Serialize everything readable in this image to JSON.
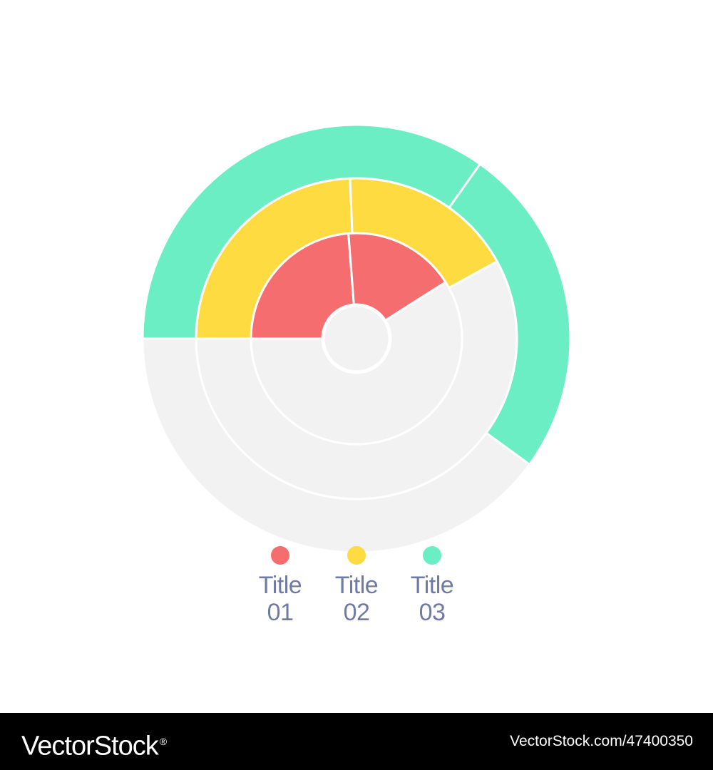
{
  "chart_data": {
    "type": "radial-bar",
    "center": "",
    "track_color": "#f2f2f2",
    "rings": [
      {
        "name": "Title 01",
        "value": 41,
        "color": "#f66d6f"
      },
      {
        "name": "Title 02",
        "value": 42,
        "color": "#fedb41"
      },
      {
        "name": "Title 03",
        "value": 60,
        "color": "#6beec4"
      }
    ],
    "legend": {
      "placement": "bottom",
      "items": [
        {
          "title": "Title",
          "number": "01",
          "color": "#f66d6f"
        },
        {
          "title": "Title",
          "number": "02",
          "color": "#fedb41"
        },
        {
          "title": "Title",
          "number": "03",
          "color": "#6beec4"
        }
      ]
    }
  },
  "watermark": {
    "brand": "VectorStock",
    "brand_mark": "®",
    "image_id": "VectorStock.com/47400350"
  }
}
